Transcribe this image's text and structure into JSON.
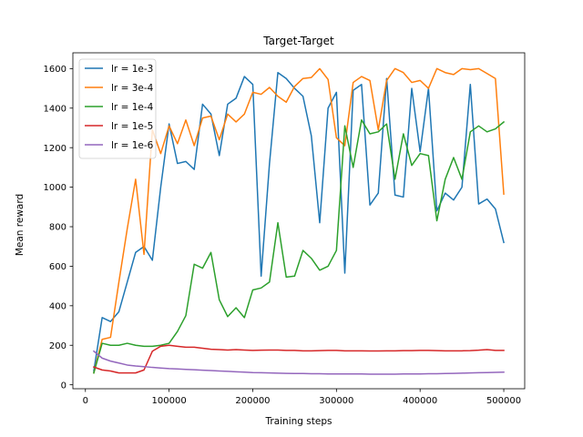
{
  "chart_data": {
    "type": "line",
    "title": "Target-Target",
    "xlabel": "Training steps",
    "ylabel": "Mean reward",
    "xlim": [
      -15000,
      525000
    ],
    "ylim": [
      -20,
      1680
    ],
    "xticks": [
      0,
      100000,
      200000,
      300000,
      400000,
      500000
    ],
    "xtick_labels": [
      "0",
      "100000",
      "200000",
      "300000",
      "400000",
      "500000"
    ],
    "yticks": [
      0,
      200,
      400,
      600,
      800,
      1000,
      1200,
      1400,
      1600
    ],
    "ytick_labels": [
      "0",
      "200",
      "400",
      "600",
      "800",
      "1000",
      "1200",
      "1400",
      "1600"
    ],
    "grid": false,
    "legend_position": "top-left",
    "x": [
      10000,
      20000,
      30000,
      40000,
      50000,
      60000,
      70000,
      80000,
      90000,
      100000,
      110000,
      120000,
      130000,
      140000,
      150000,
      160000,
      170000,
      180000,
      190000,
      200000,
      210000,
      220000,
      230000,
      240000,
      250000,
      260000,
      270000,
      280000,
      290000,
      300000,
      310000,
      320000,
      330000,
      340000,
      350000,
      360000,
      370000,
      380000,
      390000,
      400000,
      410000,
      420000,
      430000,
      440000,
      450000,
      460000,
      470000,
      480000,
      490000,
      500000
    ],
    "series": [
      {
        "name": "lr = 1e-3",
        "color": "#1f77b4",
        "values": [
          70,
          340,
          320,
          370,
          520,
          670,
          700,
          630,
          1000,
          1320,
          1120,
          1130,
          1090,
          1420,
          1370,
          1160,
          1420,
          1450,
          1560,
          1520,
          550,
          1120,
          1580,
          1550,
          1500,
          1460,
          1260,
          820,
          1400,
          1480,
          565,
          1490,
          1520,
          910,
          970,
          1550,
          960,
          950,
          1500,
          1180,
          1500,
          880,
          970,
          935,
          1000,
          1520,
          915,
          940,
          890,
          720
        ]
      },
      {
        "name": "lr = 3e-4",
        "color": "#ff7f0e",
        "values": [
          60,
          230,
          240,
          520,
          790,
          1040,
          660,
          1290,
          1170,
          1310,
          1220,
          1340,
          1210,
          1350,
          1360,
          1240,
          1370,
          1330,
          1370,
          1480,
          1470,
          1505,
          1460,
          1430,
          1510,
          1550,
          1555,
          1600,
          1545,
          1250,
          1210,
          1530,
          1560,
          1540,
          1290,
          1540,
          1600,
          1580,
          1530,
          1540,
          1500,
          1600,
          1580,
          1570,
          1600,
          1595,
          1600,
          1575,
          1550,
          965
        ]
      },
      {
        "name": "lr = 1e-4",
        "color": "#2ca02c",
        "values": [
          60,
          210,
          200,
          200,
          210,
          200,
          195,
          195,
          200,
          210,
          270,
          350,
          610,
          590,
          670,
          430,
          345,
          390,
          340,
          480,
          490,
          520,
          820,
          545,
          550,
          680,
          640,
          580,
          600,
          680,
          1310,
          1100,
          1340,
          1270,
          1280,
          1320,
          1040,
          1270,
          1110,
          1170,
          1160,
          830,
          1040,
          1150,
          1040,
          1280,
          1310,
          1280,
          1295,
          1330
        ]
      },
      {
        "name": "lr = 1e-5",
        "color": "#d62728",
        "values": [
          90,
          75,
          70,
          60,
          60,
          60,
          75,
          170,
          195,
          200,
          195,
          190,
          190,
          185,
          180,
          178,
          176,
          178,
          176,
          174,
          175,
          176,
          176,
          174,
          174,
          172,
          172,
          173,
          174,
          174,
          172,
          172,
          172,
          171,
          171,
          172,
          172,
          173,
          173,
          174,
          174,
          173,
          172,
          172,
          172,
          173,
          175,
          178,
          174,
          174
        ]
      },
      {
        "name": "lr = 1e-6",
        "color": "#9467bd",
        "values": [
          170,
          135,
          120,
          110,
          100,
          95,
          92,
          88,
          85,
          82,
          80,
          78,
          76,
          74,
          72,
          70,
          68,
          66,
          64,
          62,
          61,
          60,
          59,
          58,
          57,
          57,
          56,
          56,
          55,
          55,
          55,
          55,
          55,
          54,
          54,
          54,
          54,
          55,
          55,
          55,
          56,
          56,
          57,
          58,
          59,
          60,
          61,
          62,
          63,
          64
        ]
      }
    ]
  }
}
